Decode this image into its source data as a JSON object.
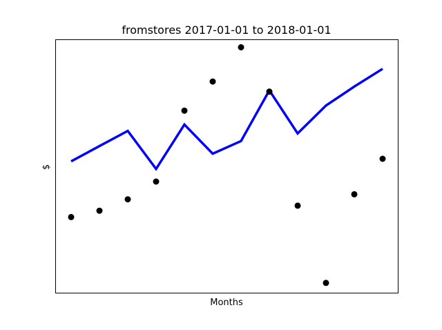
{
  "chart_data": {
    "type": "line",
    "title": "fromstores 2017-01-01 to 2018-01-01",
    "xlabel": "Months",
    "ylabel": "$",
    "x": [
      1,
      2,
      3,
      4,
      5,
      6,
      7,
      8,
      9,
      10,
      11,
      12
    ],
    "xlim": [
      0.45,
      12.55
    ],
    "ylim": [
      0,
      100
    ],
    "series": [
      {
        "kind": "line",
        "color": "#0000ff",
        "values": [
          52,
          58,
          64,
          49,
          66.5,
          55,
          60,
          80,
          63,
          74,
          81.5,
          88.5
        ]
      },
      {
        "kind": "scatter",
        "color": "#000000",
        "values": [
          30,
          32.5,
          37,
          44,
          72,
          83.5,
          97,
          79.5,
          34.5,
          4,
          39,
          53
        ]
      }
    ],
    "grid": false,
    "x_ticks_visible": false,
    "y_ticks_visible": false
  }
}
